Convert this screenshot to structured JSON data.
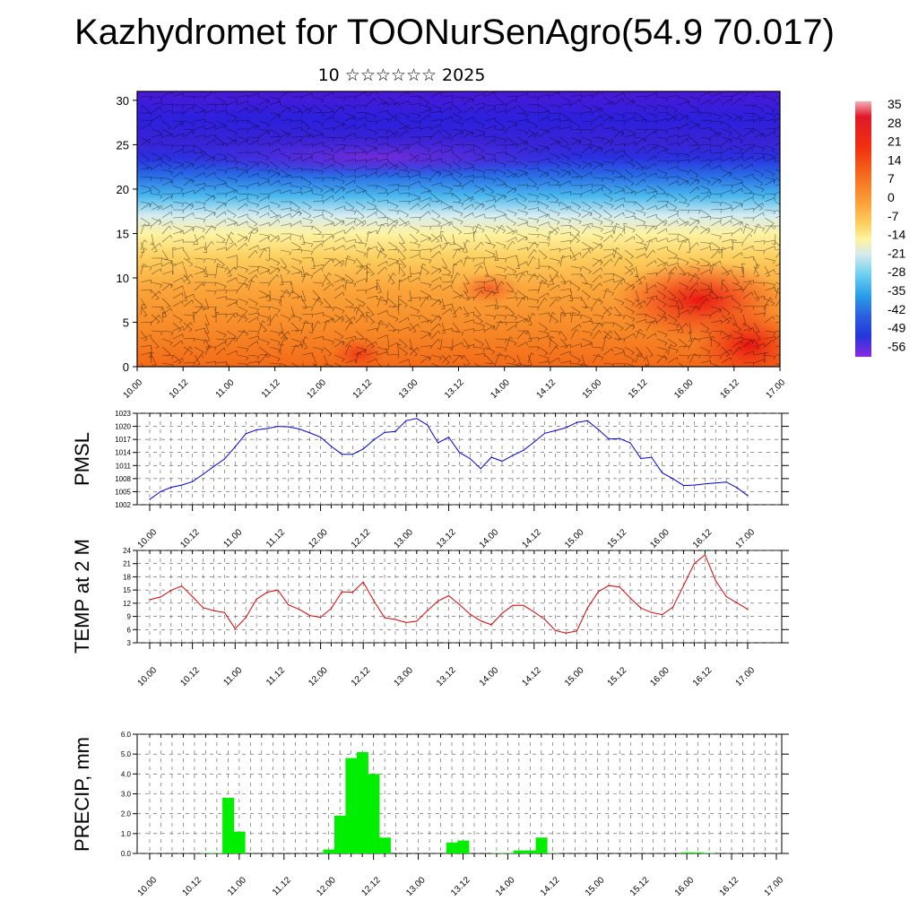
{
  "title": "Kazhydromet for TOONurSenAgro(54.9 70.017)",
  "subtitle": "10 ☆☆☆☆☆☆ 2025",
  "time_labels": [
    "10.00",
    "10.12",
    "11.00",
    "11.12",
    "12.00",
    "12.12",
    "13.00",
    "13.12",
    "14.00",
    "14.12",
    "15.00",
    "15.12",
    "16.00",
    "16.12",
    "17.00"
  ],
  "chart_data": [
    {
      "type": "heatmap",
      "panel": "temperature cross-section with wind barbs",
      "y_ticks": [
        "0",
        "5",
        "10",
        "15",
        "20",
        "25",
        "30"
      ],
      "ylim": [
        0,
        31
      ],
      "colorbar": {
        "labels": [
          "35",
          "28",
          "21",
          "14",
          "7",
          "0",
          "-7",
          "-14",
          "-21",
          "-28",
          "-35",
          "-42",
          "-49",
          "-56"
        ],
        "colors": [
          "#f0a0a8",
          "#e01828",
          "#f23a10",
          "#f77020",
          "#fba23a",
          "#fccd5a",
          "#fff4a0",
          "#d5e9ee",
          "#6ad0f0",
          "#2a9ee8",
          "#2c60e0",
          "#2236dd",
          "#3a20d8",
          "#8a2ae0"
        ]
      },
      "x_ticks": [
        "10.00",
        "10.12",
        "11.00",
        "11.12",
        "12.00",
        "12.12",
        "13.00",
        "13.12",
        "14.00",
        "14.12",
        "15.00",
        "15.12",
        "16.00",
        "16.12",
        "17.00"
      ]
    },
    {
      "type": "line",
      "ylabel": "PMSL",
      "ylim": [
        1002,
        1023
      ],
      "y_ticks": [
        "1002",
        "1005",
        "1008",
        "1011",
        "1014",
        "1017",
        "1020",
        "1023"
      ],
      "x_ticks": [
        "10.00",
        "10.12",
        "11.00",
        "11.12",
        "12.00",
        "12.12",
        "13.00",
        "13.12",
        "14.00",
        "14.12",
        "15.00",
        "15.12",
        "16.00",
        "16.12",
        "17.00"
      ],
      "color": "#0000dd",
      "values": [
        1003.2,
        1005.0,
        1006.0,
        1006.5,
        1007.3,
        1009.0,
        1010.8,
        1012.5,
        1015.3,
        1018.3,
        1019.2,
        1019.5,
        1020.0,
        1019.9,
        1019.4,
        1018.5,
        1017.5,
        1015.4,
        1013.6,
        1013.6,
        1014.8,
        1016.9,
        1018.6,
        1018.8,
        1021.3,
        1021.8,
        1020.3,
        1016.2,
        1017.5,
        1014.0,
        1012.6,
        1010.3,
        1012.9,
        1012.0,
        1013.3,
        1014.5,
        1016.4,
        1018.4,
        1019.0,
        1019.7,
        1020.9,
        1021.3,
        1019.3,
        1017.1,
        1017.2,
        1016.2,
        1012.6,
        1012.9,
        1009.3,
        1008.0,
        1006.4,
        1006.5,
        1006.8,
        1007.0,
        1007.2,
        1005.9,
        1004.1
      ]
    },
    {
      "type": "line",
      "ylabel": "TEMP at 2 M",
      "ylim": [
        3,
        24
      ],
      "y_ticks": [
        "3",
        "6",
        "9",
        "12",
        "15",
        "18",
        "21",
        "24"
      ],
      "x_ticks": [
        "10.00",
        "10.12",
        "11.00",
        "11.12",
        "12.00",
        "12.12",
        "13.00",
        "13.12",
        "14.00",
        "14.12",
        "15.00",
        "15.12",
        "16.00",
        "16.12",
        "17.00"
      ],
      "color": "#dd0000",
      "values": [
        12.8,
        13.4,
        14.9,
        15.9,
        13.5,
        11.0,
        10.3,
        9.9,
        6.2,
        8.7,
        12.9,
        14.5,
        15.0,
        11.6,
        10.6,
        9.2,
        8.8,
        10.8,
        14.6,
        14.5,
        16.8,
        12.5,
        8.7,
        8.3,
        7.6,
        7.9,
        10.3,
        12.5,
        13.7,
        11.7,
        9.5,
        8.0,
        7.1,
        9.7,
        11.5,
        11.5,
        10.0,
        8.3,
        5.8,
        5.2,
        5.7,
        10.9,
        14.6,
        16.0,
        15.7,
        13.2,
        10.9,
        9.9,
        9.4,
        11.1,
        16.0,
        21.0,
        23.0,
        17.1,
        13.5,
        12.1,
        10.6
      ]
    },
    {
      "type": "bar",
      "ylabel": "PRECIP, mm",
      "ylim": [
        0,
        6
      ],
      "y_ticks": [
        "0.0",
        "1.0",
        "2.0",
        "3.0",
        "4.0",
        "5.0",
        "6.0"
      ],
      "x_ticks": [
        "10.00",
        "10.12",
        "11.00",
        "11.12",
        "12.00",
        "12.12",
        "13.00",
        "13.12",
        "14.00",
        "14.12",
        "15.00",
        "15.12",
        "16.00",
        "16.12",
        "17.00"
      ],
      "color": "#00ee00",
      "values": [
        0,
        0,
        0,
        0,
        0,
        0.02,
        0.02,
        2.8,
        1.1,
        0,
        0,
        0,
        0,
        0,
        0,
        0,
        0.2,
        1.9,
        4.8,
        5.1,
        4.0,
        0.8,
        0,
        0,
        0,
        0,
        0,
        0.55,
        0.65,
        0,
        0,
        0.02,
        0.02,
        0.15,
        0.15,
        0.8,
        0.02,
        0,
        0,
        0,
        0,
        0,
        0,
        0,
        0,
        0,
        0,
        0,
        0.05,
        0.05,
        0.02,
        0,
        0,
        0,
        0,
        0,
        0
      ]
    }
  ]
}
